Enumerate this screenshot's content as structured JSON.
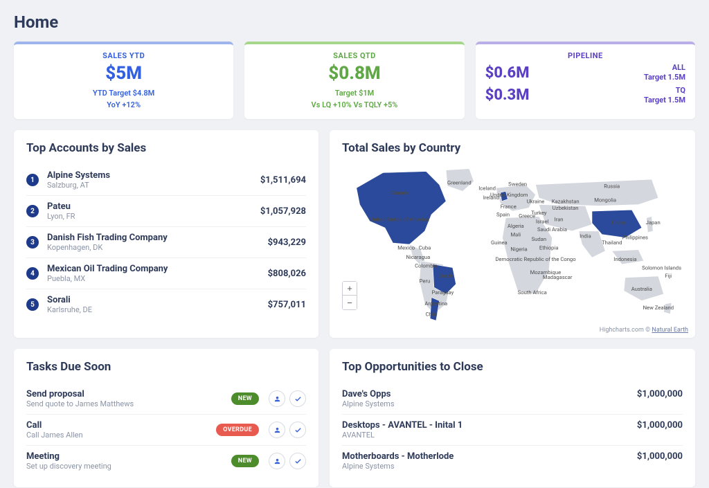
{
  "page": {
    "title": "Home"
  },
  "colors": {
    "blue": "#3360e0",
    "green": "#5fa845",
    "purple": "#5b3fc4",
    "badge_rank_bg": "#1e3a8a",
    "badge_new": "#4c8c2b",
    "badge_overdue": "#e85a4f",
    "map_dark": "#2b4a9b",
    "map_light": "#d4d7de",
    "border_blue": "#9db4ec",
    "border_green": "#a6d68c",
    "border_purple": "#b9aee7"
  },
  "kpi": {
    "ytd": {
      "label": "SALES YTD",
      "value": "$5M",
      "sub1": "YTD Target $4.8M",
      "sub2": "YoY +12%"
    },
    "qtd": {
      "label": "SALES QTD",
      "value": "$0.8M",
      "sub1": "Target $1M",
      "sub2": "Vs LQ +10%   Vs TQLY +5%"
    },
    "pipeline": {
      "label": "PIPELINE",
      "row1_value": "$0.6M",
      "row1_tag": "ALL",
      "row1_target": "Target 1.5M",
      "row2_value": "$0.3M",
      "row2_tag": "TQ",
      "row2_target": "Target 1.5M"
    }
  },
  "top_accounts": {
    "title": "Top Accounts by Sales",
    "items": [
      {
        "rank": "1",
        "name": "Alpine Systems",
        "loc": "Salzburg, AT",
        "value": "$1,511,694"
      },
      {
        "rank": "2",
        "name": "Pateu",
        "loc": "Lyon, FR",
        "value": "$1,057,928"
      },
      {
        "rank": "3",
        "name": "Danish Fish Trading Company",
        "loc": "Kopenhagen, DK",
        "value": "$943,229"
      },
      {
        "rank": "4",
        "name": "Mexican Oil Trading Company",
        "loc": "Puebla, MX",
        "value": "$808,026"
      },
      {
        "rank": "5",
        "name": "Sorali",
        "loc": "Karlsruhe, DE",
        "value": "$757,011"
      }
    ]
  },
  "map": {
    "title": "Total Sales by Country",
    "credit_prefix": "Highcharts.com © ",
    "credit_link": "Natural Earth",
    "highlighted_countries": [
      "Canada",
      "United States of America",
      "Brazil",
      "China"
    ],
    "labels": [
      "Greenland",
      "Iceland",
      "Sweden",
      "Russia",
      "Ireland",
      "United Kingdom",
      "Canada",
      "United States of America",
      "France",
      "Spain",
      "Ukraine",
      "Kazakhstan",
      "Uzbekistan",
      "Mongolia",
      "Turkey",
      "Greece",
      "Israel",
      "Iran",
      "Saudi Arabia",
      "India",
      "Japan",
      "China",
      "Philippines",
      "Thailand",
      "Mexico",
      "Cuba",
      "Nicaragua",
      "Colombia",
      "Peru",
      "Brazil",
      "Paraguay",
      "Argentina",
      "Chile",
      "Guinea",
      "Nigeria",
      "Algeria",
      "Mali",
      "Sudan",
      "Ethiopia",
      "Democratic Republic of the Congo",
      "Mozambique",
      "Madagascar",
      "South Africa",
      "Indonesia",
      "Solomon Islands",
      "Fiji",
      "Australia",
      "New Zealand"
    ]
  },
  "tasks": {
    "title": "Tasks Due Soon",
    "items": [
      {
        "title": "Send proposal",
        "sub": "Send quote to James Matthews",
        "badge": "NEW",
        "badge_color": "#4c8c2b"
      },
      {
        "title": "Call",
        "sub": "Call James Allen",
        "badge": "OVERDUE",
        "badge_color": "#e85a4f"
      },
      {
        "title": "Meeting",
        "sub": "Set up discovery meeting",
        "badge": "NEW",
        "badge_color": "#4c8c2b"
      }
    ]
  },
  "opps": {
    "title": "Top Opportunities to Close",
    "items": [
      {
        "name": "Dave's Opps",
        "sub": "Alpine Systems",
        "value": "$1,000,000"
      },
      {
        "name": "Desktops - AVANTEL - Inital 1",
        "sub": "AVANTEL",
        "value": "$1,000,000"
      },
      {
        "name": "Motherboards - Motherlode",
        "sub": "Alpine Systems",
        "value": "$1,000,000"
      }
    ]
  }
}
